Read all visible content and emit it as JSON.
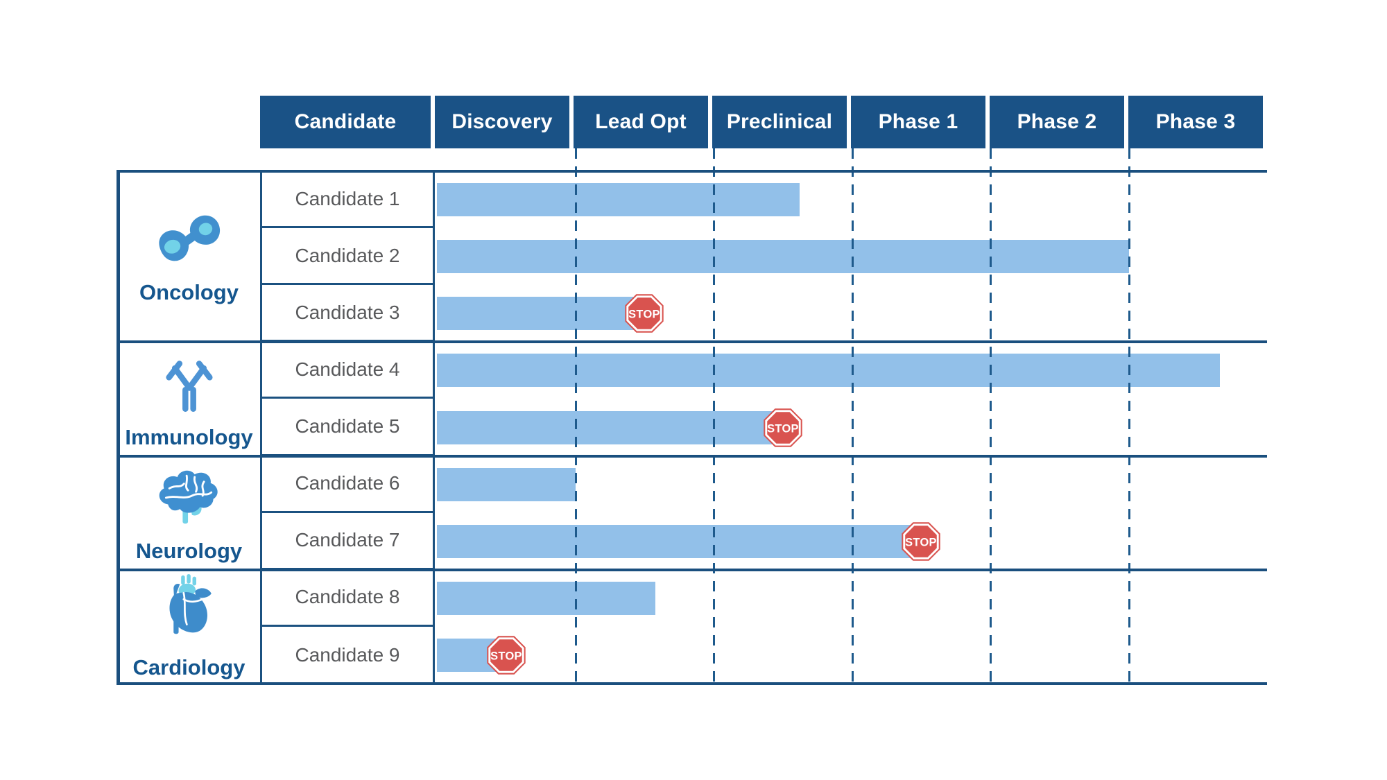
{
  "page": {
    "background": "#ffffff"
  },
  "header": {
    "columns": [
      "Candidate",
      "Discovery",
      "Lead Opt",
      "Preclinical",
      "Phase 1",
      "Phase 2",
      "Phase 3"
    ]
  },
  "chart_data": {
    "type": "gantt",
    "title": "",
    "phases": [
      "Discovery",
      "Lead Opt",
      "Preclinical",
      "Phase 1",
      "Phase 2",
      "Phase 3"
    ],
    "axis_note": "progress measured in phase-column units, 0 = start of Discovery, 6 = end of Phase 3",
    "grid": "dashed vertical lines at phase boundaries",
    "sections": [
      {
        "area": "Oncology",
        "icon": "cell-division-icon",
        "candidates": [
          {
            "label": "Candidate 1",
            "progress": 2.62,
            "status": "active"
          },
          {
            "label": "Candidate 2",
            "progress": 5.0,
            "status": "active"
          },
          {
            "label": "Candidate 3",
            "progress": 1.5,
            "status": "stopped",
            "stop_label": "STOP",
            "stopped_in": "Lead Opt"
          }
        ]
      },
      {
        "area": "Immunology",
        "icon": "antibody-icon",
        "candidates": [
          {
            "label": "Candidate 4",
            "progress": 5.66,
            "status": "active"
          },
          {
            "label": "Candidate 5",
            "progress": 2.5,
            "status": "stopped",
            "stop_label": "STOP",
            "stopped_in": "Preclinical"
          }
        ]
      },
      {
        "area": "Neurology",
        "icon": "brain-icon",
        "candidates": [
          {
            "label": "Candidate 6",
            "progress": 1.0,
            "status": "active"
          },
          {
            "label": "Candidate 7",
            "progress": 3.5,
            "status": "stopped",
            "stop_label": "STOP",
            "stopped_in": "Phase 1"
          }
        ]
      },
      {
        "area": "Cardiology",
        "icon": "heart-icon",
        "candidates": [
          {
            "label": "Candidate 8",
            "progress": 1.58,
            "status": "active"
          },
          {
            "label": "Candidate 9",
            "progress": 0.5,
            "status": "stopped",
            "stop_label": "STOP",
            "stopped_in": "Discovery"
          }
        ]
      }
    ]
  },
  "colors": {
    "header_bg": "#1A5286",
    "header_text": "#ffffff",
    "bar": "#92C0E9",
    "border": "#1A4F7E",
    "cell_border": "#1B5180",
    "dashed_line": "#1E5A8C",
    "candidate_text": "#58595B",
    "section_text": "#15568E",
    "stop_red": "#D9534F",
    "icon_blue": "#4190CE",
    "icon_light_blue": "#72D2E8"
  }
}
